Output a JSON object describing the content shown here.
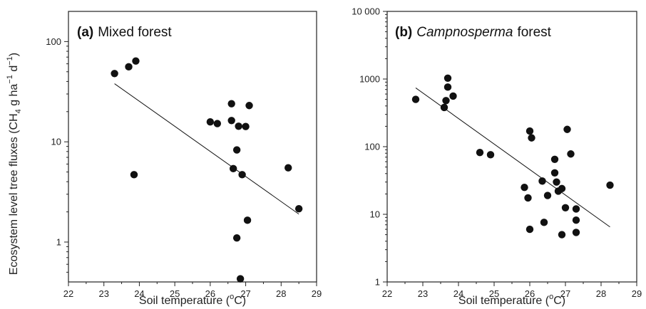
{
  "figure": {
    "ylabel": "Ecosystem level tree fluxes (CH4 g ha−1 d−1)",
    "ylabel_parts": {
      "pre": "Ecosystem level tree fluxes (CH",
      "sub": "4",
      "mid1": " g ha",
      "sup1": "−1",
      "mid2": " d",
      "sup2": "−1",
      "post": ")"
    }
  },
  "chart_data": [
    {
      "type": "scatter",
      "title": "(a) Mixed forest",
      "title_parts": {
        "tag": "(a)",
        "name": "Mixed forest"
      },
      "xlabel": "Soil temperature (°C)",
      "xlabel_parts": {
        "pre": "Soil temperature (",
        "sup": "o",
        "post": "C)"
      },
      "xlim": [
        22,
        29
      ],
      "ylim": [
        0.4,
        200
      ],
      "yscale": "log",
      "xticks": [
        "22",
        "23",
        "24",
        "25",
        "26",
        "27",
        "28",
        "29"
      ],
      "yticks": [
        {
          "value": 1,
          "label": "1"
        },
        {
          "value": 10,
          "label": "10"
        },
        {
          "value": 100,
          "label": "100"
        }
      ],
      "points": [
        {
          "x": 23.3,
          "y": 48
        },
        {
          "x": 23.7,
          "y": 56
        },
        {
          "x": 23.9,
          "y": 64
        },
        {
          "x": 23.85,
          "y": 4.7
        },
        {
          "x": 26.0,
          "y": 15.8
        },
        {
          "x": 26.2,
          "y": 15.2
        },
        {
          "x": 26.6,
          "y": 24
        },
        {
          "x": 26.6,
          "y": 16.3
        },
        {
          "x": 26.75,
          "y": 8.3
        },
        {
          "x": 26.8,
          "y": 14.3
        },
        {
          "x": 27.0,
          "y": 14.2
        },
        {
          "x": 27.1,
          "y": 23
        },
        {
          "x": 26.65,
          "y": 5.4
        },
        {
          "x": 26.9,
          "y": 4.7
        },
        {
          "x": 26.75,
          "y": 1.1
        },
        {
          "x": 27.05,
          "y": 1.65
        },
        {
          "x": 26.85,
          "y": 0.43
        },
        {
          "x": 28.2,
          "y": 5.5
        },
        {
          "x": 28.5,
          "y": 2.15
        }
      ],
      "fit_line": {
        "x": [
          23.3,
          28.5
        ],
        "y": [
          38,
          1.9
        ]
      },
      "grid": false
    },
    {
      "type": "scatter",
      "title": "(b) Campnosperma forest",
      "title_parts": {
        "tag": "(b)",
        "name": "Campnosperma",
        "suffix": "forest"
      },
      "xlabel": "Soil temperature (°C)",
      "xlabel_parts": {
        "pre": "Soil temperature (",
        "sup": "o",
        "post": "C)"
      },
      "xlim": [
        22,
        29
      ],
      "ylim": [
        1,
        10000
      ],
      "yscale": "log",
      "xticks": [
        "22",
        "23",
        "24",
        "25",
        "26",
        "27",
        "28",
        "29"
      ],
      "yticks": [
        {
          "value": 1,
          "label": "1"
        },
        {
          "value": 10,
          "label": "10"
        },
        {
          "value": 100,
          "label": "100"
        },
        {
          "value": 1000,
          "label": "1000"
        },
        {
          "value": 10000,
          "label": "10 000"
        }
      ],
      "points": [
        {
          "x": 22.8,
          "y": 500
        },
        {
          "x": 23.6,
          "y": 380
        },
        {
          "x": 23.65,
          "y": 480
        },
        {
          "x": 23.7,
          "y": 760
        },
        {
          "x": 23.7,
          "y": 1030
        },
        {
          "x": 23.85,
          "y": 560
        },
        {
          "x": 24.6,
          "y": 82
        },
        {
          "x": 24.9,
          "y": 76
        },
        {
          "x": 26.0,
          "y": 170
        },
        {
          "x": 26.05,
          "y": 135
        },
        {
          "x": 25.85,
          "y": 25
        },
        {
          "x": 25.95,
          "y": 17.5
        },
        {
          "x": 26.0,
          "y": 6.0
        },
        {
          "x": 26.35,
          "y": 31
        },
        {
          "x": 26.4,
          "y": 7.6
        },
        {
          "x": 26.5,
          "y": 19
        },
        {
          "x": 26.7,
          "y": 65
        },
        {
          "x": 26.7,
          "y": 41
        },
        {
          "x": 26.75,
          "y": 30
        },
        {
          "x": 26.8,
          "y": 22
        },
        {
          "x": 26.9,
          "y": 24
        },
        {
          "x": 26.9,
          "y": 5.0
        },
        {
          "x": 27.0,
          "y": 12.5
        },
        {
          "x": 27.05,
          "y": 180
        },
        {
          "x": 27.15,
          "y": 78
        },
        {
          "x": 27.3,
          "y": 12
        },
        {
          "x": 27.3,
          "y": 8.2
        },
        {
          "x": 27.3,
          "y": 5.4
        },
        {
          "x": 28.25,
          "y": 27
        }
      ],
      "fit_line": {
        "x": [
          22.8,
          28.25
        ],
        "y": [
          740,
          6.5
        ]
      },
      "grid": false
    }
  ]
}
